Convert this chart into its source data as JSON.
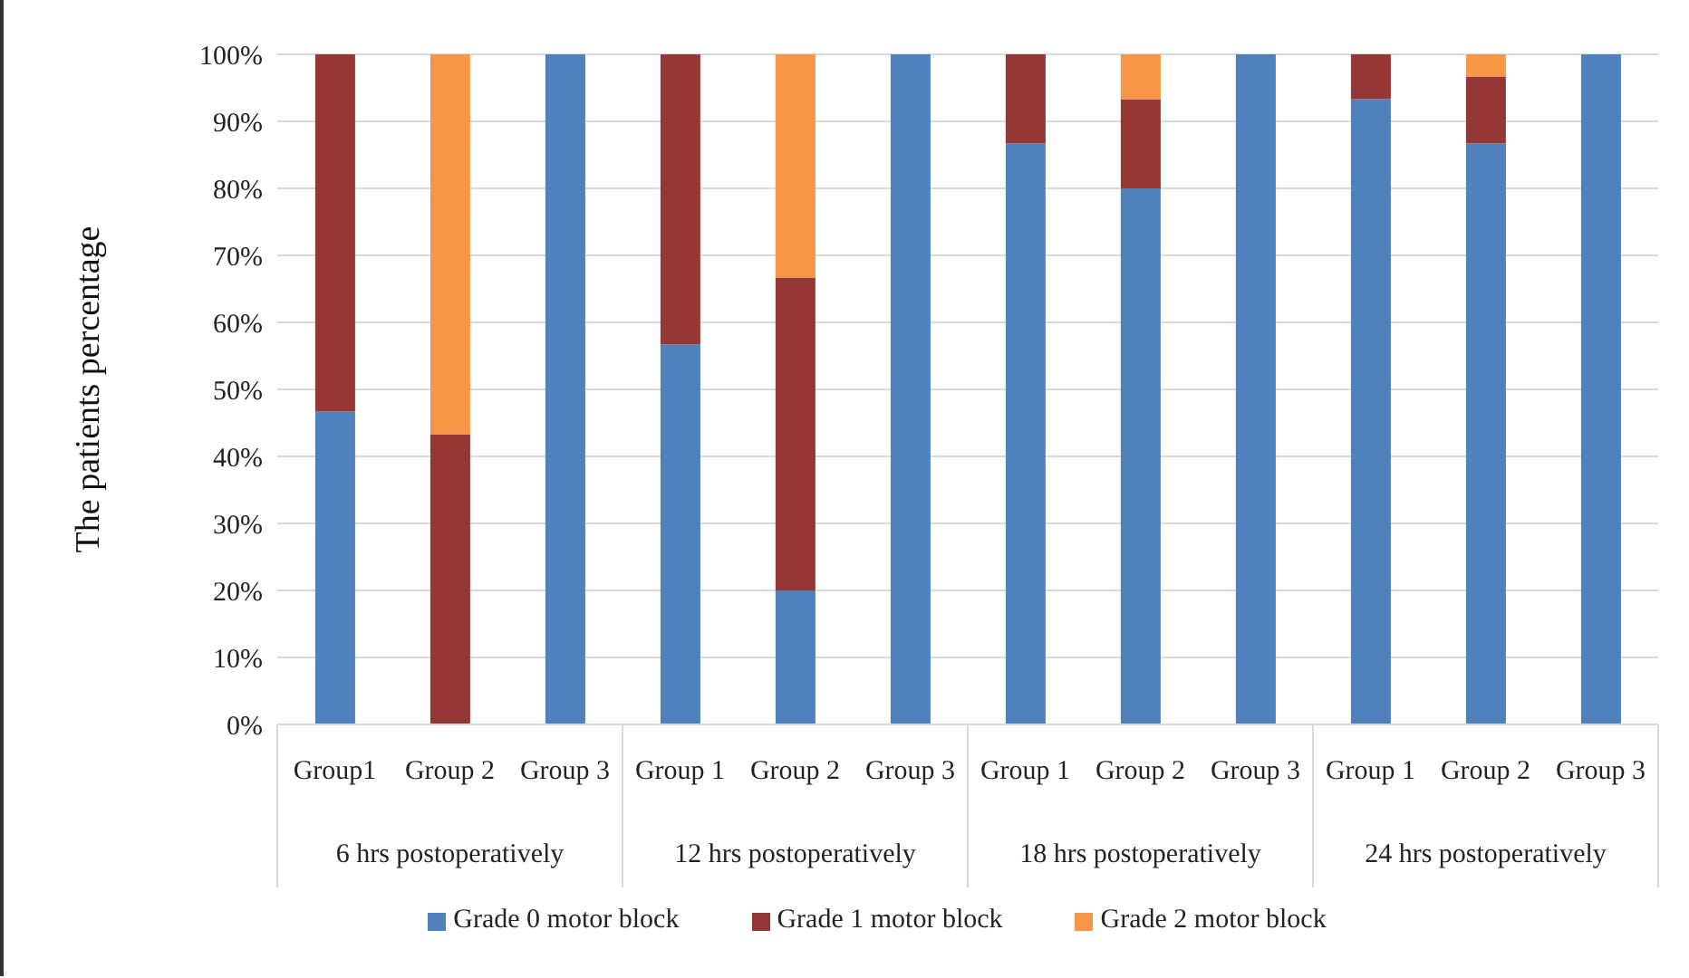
{
  "chart_data": {
    "type": "bar",
    "stacked": true,
    "ylabel": "The patients percentage",
    "categories": [
      "Group1",
      "Group 2",
      "Group 3",
      "Group 1",
      "Group 2",
      "Group 3",
      "Group 1",
      "Group 2",
      "Group 3",
      "Group 1",
      "Group 2",
      "Group 3"
    ],
    "annotations": [
      "6 hrs postoperatively",
      "12 hrs postoperatively",
      "18 hrs postoperatively",
      "24 hrs postoperatively"
    ],
    "series": [
      {
        "name": "Grade 0 motor block",
        "color": "#4f81bd",
        "values": [
          46.7,
          0,
          100,
          56.7,
          20,
          100,
          86.7,
          80,
          100,
          93.3,
          86.7,
          100
        ]
      },
      {
        "name": "Grade 1 motor block",
        "color": "#953735",
        "values": [
          53.3,
          43.3,
          0,
          43.3,
          46.7,
          0,
          13.3,
          13.3,
          0,
          6.7,
          10,
          0
        ]
      },
      {
        "name": "Grade 2 motor block",
        "color": "#f79646",
        "values": [
          0,
          56.7,
          0,
          0,
          33.3,
          0,
          0,
          6.7,
          0,
          0,
          3.3,
          0
        ]
      }
    ],
    "ylim": [
      0,
      100
    ],
    "yticks": [
      {
        "value": 0,
        "label": "0%"
      },
      {
        "value": 10,
        "label": "10%"
      },
      {
        "value": 20,
        "label": "20%"
      },
      {
        "value": 30,
        "label": "30%"
      },
      {
        "value": 40,
        "label": "40%"
      },
      {
        "value": 50,
        "label": "50%"
      },
      {
        "value": 60,
        "label": "60%"
      },
      {
        "value": 70,
        "label": "70%"
      },
      {
        "value": 80,
        "label": "80%"
      },
      {
        "value": 90,
        "label": "90%"
      },
      {
        "value": 100,
        "label": "100%"
      }
    ],
    "grid": "y",
    "legend": "bottom"
  }
}
